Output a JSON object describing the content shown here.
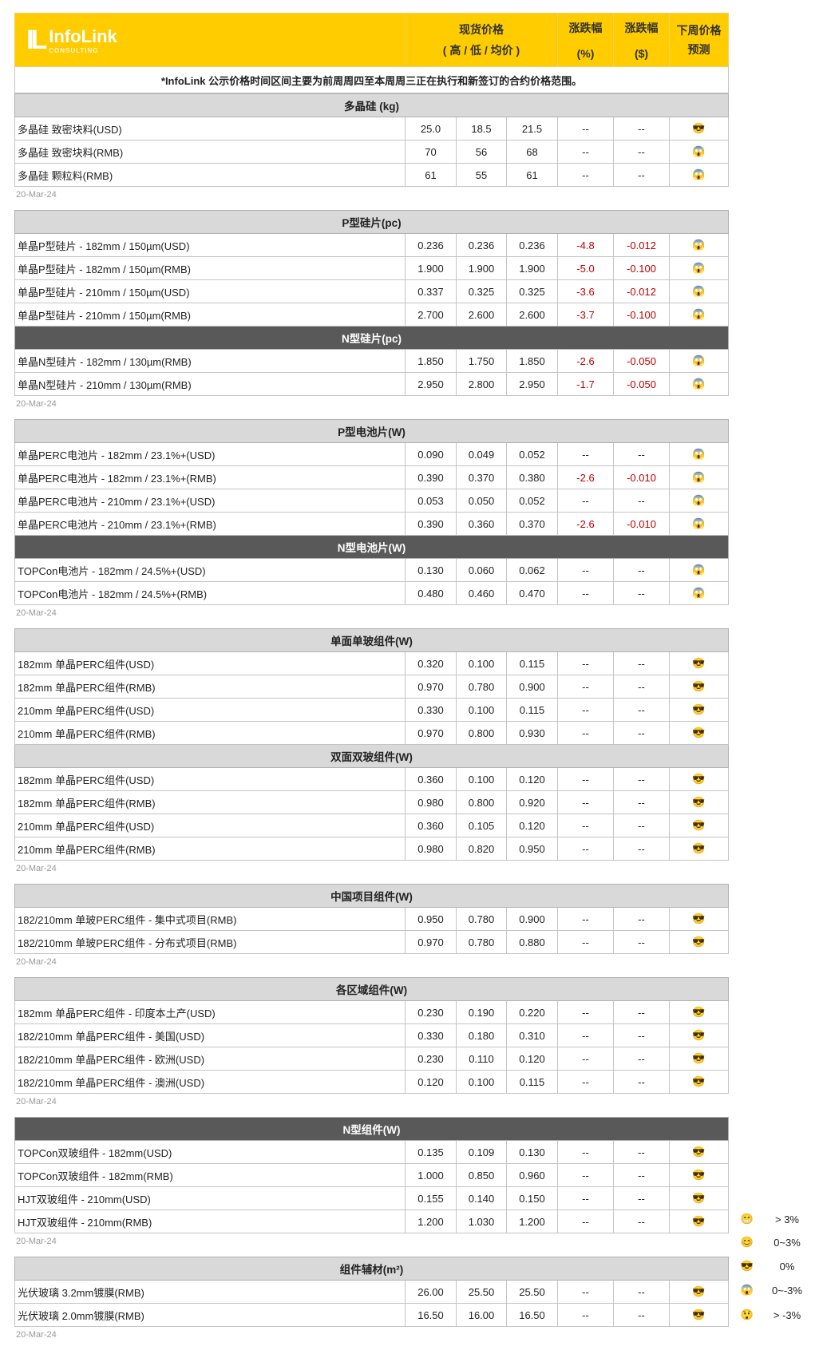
{
  "header": {
    "logo_name": "InfoLink",
    "logo_sub": "CONSULTING",
    "spot_price": "现货价格",
    "spot_price_sub": "( 高 / 低 / 均价 )",
    "change_pct": "涨跌幅",
    "change_pct_unit": "(%)",
    "change_usd": "涨跌幅",
    "change_usd_unit": "($)",
    "forecast": "下周价格",
    "forecast_sub": "预测"
  },
  "note": "*InfoLink 公示价格时间区间主要为前周周四至本周周三正在执行和新签订的合约价格范围。",
  "colors": {
    "header": "#ffcc00",
    "section_light": "#d9d9d9",
    "section_dark": "#595959",
    "negative": "#c00000"
  },
  "emoji_map": {
    "sunglasses-icon": "😎",
    "scream-icon": "😱",
    "grin-icon": "😁",
    "smile-icon": "😊",
    "astonished-icon": "😲"
  },
  "groups": [
    {
      "date": "20-Mar-24",
      "sections": [
        {
          "title": "多晶硅 (kg)",
          "dark": false,
          "rows": [
            {
              "name": "多晶硅 致密块料(USD)",
              "high": "25.0",
              "low": "18.5",
              "avg": "21.5",
              "pct": "--",
              "usd": "--",
              "forecast": "sunglasses-icon"
            },
            {
              "name": "多晶硅 致密块料(RMB)",
              "high": "70",
              "low": "56",
              "avg": "68",
              "pct": "--",
              "usd": "--",
              "forecast": "scream-icon"
            },
            {
              "name": "多晶硅 颗粒料(RMB)",
              "high": "61",
              "low": "55",
              "avg": "61",
              "pct": "--",
              "usd": "--",
              "forecast": "scream-icon"
            }
          ]
        }
      ]
    },
    {
      "date": "20-Mar-24",
      "sections": [
        {
          "title": "P型硅片(pc)",
          "dark": false,
          "rows": [
            {
              "name": "单晶P型硅片 - 182mm / 150µm(USD)",
              "high": "0.236",
              "low": "0.236",
              "avg": "0.236",
              "pct": "-4.8",
              "usd": "-0.012",
              "forecast": "scream-icon"
            },
            {
              "name": "单晶P型硅片 - 182mm / 150µm(RMB)",
              "high": "1.900",
              "low": "1.900",
              "avg": "1.900",
              "pct": "-5.0",
              "usd": "-0.100",
              "forecast": "scream-icon"
            },
            {
              "name": "单晶P型硅片 - 210mm / 150µm(USD)",
              "high": "0.337",
              "low": "0.325",
              "avg": "0.325",
              "pct": "-3.6",
              "usd": "-0.012",
              "forecast": "scream-icon"
            },
            {
              "name": "单晶P型硅片 - 210mm / 150µm(RMB)",
              "high": "2.700",
              "low": "2.600",
              "avg": "2.600",
              "pct": "-3.7",
              "usd": "-0.100",
              "forecast": "scream-icon"
            }
          ]
        },
        {
          "title": "N型硅片(pc)",
          "dark": true,
          "rows": [
            {
              "name": "单晶N型硅片 - 182mm / 130µm(RMB)",
              "high": "1.850",
              "low": "1.750",
              "avg": "1.850",
              "pct": "-2.6",
              "usd": "-0.050",
              "forecast": "scream-icon"
            },
            {
              "name": "单晶N型硅片 - 210mm / 130µm(RMB)",
              "high": "2.950",
              "low": "2.800",
              "avg": "2.950",
              "pct": "-1.7",
              "usd": "-0.050",
              "forecast": "scream-icon"
            }
          ]
        }
      ]
    },
    {
      "date": "20-Mar-24",
      "sections": [
        {
          "title": "P型电池片(W)",
          "dark": false,
          "rows": [
            {
              "name": "单晶PERC电池片 - 182mm / 23.1%+(USD)",
              "high": "0.090",
              "low": "0.049",
              "avg": "0.052",
              "pct": "--",
              "usd": "--",
              "forecast": "scream-icon"
            },
            {
              "name": "单晶PERC电池片 - 182mm / 23.1%+(RMB)",
              "high": "0.390",
              "low": "0.370",
              "avg": "0.380",
              "pct": "-2.6",
              "usd": "-0.010",
              "forecast": "scream-icon"
            },
            {
              "name": "单晶PERC电池片 - 210mm / 23.1%+(USD)",
              "high": "0.053",
              "low": "0.050",
              "avg": "0.052",
              "pct": "--",
              "usd": "--",
              "forecast": "scream-icon"
            },
            {
              "name": "单晶PERC电池片 - 210mm / 23.1%+(RMB)",
              "high": "0.390",
              "low": "0.360",
              "avg": "0.370",
              "pct": "-2.6",
              "usd": "-0.010",
              "forecast": "scream-icon"
            }
          ]
        },
        {
          "title": "N型电池片(W)",
          "dark": true,
          "rows": [
            {
              "name": "TOPCon电池片 - 182mm / 24.5%+(USD)",
              "high": "0.130",
              "low": "0.060",
              "avg": "0.062",
              "pct": "--",
              "usd": "--",
              "forecast": "scream-icon"
            },
            {
              "name": "TOPCon电池片 - 182mm / 24.5%+(RMB)",
              "high": "0.480",
              "low": "0.460",
              "avg": "0.470",
              "pct": "--",
              "usd": "--",
              "forecast": "scream-icon"
            }
          ]
        }
      ]
    },
    {
      "date": "20-Mar-24",
      "sections": [
        {
          "title": "单面单玻组件(W)",
          "dark": false,
          "rows": [
            {
              "name": "182mm 单晶PERC组件(USD)",
              "high": "0.320",
              "low": "0.100",
              "avg": "0.115",
              "pct": "--",
              "usd": "--",
              "forecast": "sunglasses-icon"
            },
            {
              "name": "182mm 单晶PERC组件(RMB)",
              "high": "0.970",
              "low": "0.780",
              "avg": "0.900",
              "pct": "--",
              "usd": "--",
              "forecast": "sunglasses-icon"
            },
            {
              "name": "210mm 单晶PERC组件(USD)",
              "high": "0.330",
              "low": "0.100",
              "avg": "0.115",
              "pct": "--",
              "usd": "--",
              "forecast": "sunglasses-icon"
            },
            {
              "name": "210mm 单晶PERC组件(RMB)",
              "high": "0.970",
              "low": "0.800",
              "avg": "0.930",
              "pct": "--",
              "usd": "--",
              "forecast": "sunglasses-icon"
            }
          ]
        },
        {
          "title": "双面双玻组件(W)",
          "dark": false,
          "rows": [
            {
              "name": "182mm 单晶PERC组件(USD)",
              "high": "0.360",
              "low": "0.100",
              "avg": "0.120",
              "pct": "--",
              "usd": "--",
              "forecast": "sunglasses-icon"
            },
            {
              "name": "182mm 单晶PERC组件(RMB)",
              "high": "0.980",
              "low": "0.800",
              "avg": "0.920",
              "pct": "--",
              "usd": "--",
              "forecast": "sunglasses-icon"
            },
            {
              "name": "210mm 单晶PERC组件(USD)",
              "high": "0.360",
              "low": "0.105",
              "avg": "0.120",
              "pct": "--",
              "usd": "--",
              "forecast": "sunglasses-icon"
            },
            {
              "name": "210mm 单晶PERC组件(RMB)",
              "high": "0.980",
              "low": "0.820",
              "avg": "0.950",
              "pct": "--",
              "usd": "--",
              "forecast": "sunglasses-icon"
            }
          ]
        }
      ]
    },
    {
      "date": "20-Mar-24",
      "sections": [
        {
          "title": "中国项目组件(W)",
          "dark": false,
          "rows": [
            {
              "name": "182/210mm 单玻PERC组件 - 集中式项目(RMB)",
              "high": "0.950",
              "low": "0.780",
              "avg": "0.900",
              "pct": "--",
              "usd": "--",
              "forecast": "sunglasses-icon"
            },
            {
              "name": "182/210mm 单玻PERC组件 - 分布式项目(RMB)",
              "high": "0.970",
              "low": "0.780",
              "avg": "0.880",
              "pct": "--",
              "usd": "--",
              "forecast": "sunglasses-icon"
            }
          ]
        }
      ]
    },
    {
      "date": "20-Mar-24",
      "sections": [
        {
          "title": "各区域组件(W)",
          "dark": false,
          "rows": [
            {
              "name": "182mm 单晶PERC组件 - 印度本土产(USD)",
              "high": "0.230",
              "low": "0.190",
              "avg": "0.220",
              "pct": "--",
              "usd": "--",
              "forecast": "sunglasses-icon"
            },
            {
              "name": "182/210mm 单晶PERC组件 - 美国(USD)",
              "high": "0.330",
              "low": "0.180",
              "avg": "0.310",
              "pct": "--",
              "usd": "--",
              "forecast": "sunglasses-icon"
            },
            {
              "name": "182/210mm 单晶PERC组件 - 欧洲(USD)",
              "high": "0.230",
              "low": "0.110",
              "avg": "0.120",
              "pct": "--",
              "usd": "--",
              "forecast": "sunglasses-icon"
            },
            {
              "name": "182/210mm 单晶PERC组件 - 澳洲(USD)",
              "high": "0.120",
              "low": "0.100",
              "avg": "0.115",
              "pct": "--",
              "usd": "--",
              "forecast": "sunglasses-icon"
            }
          ]
        }
      ]
    },
    {
      "date": "20-Mar-24",
      "sections": [
        {
          "title": "N型组件(W)",
          "dark": true,
          "rows": [
            {
              "name": "TOPCon双玻组件 - 182mm(USD)",
              "high": "0.135",
              "low": "0.109",
              "avg": "0.130",
              "pct": "--",
              "usd": "--",
              "forecast": "sunglasses-icon"
            },
            {
              "name": "TOPCon双玻组件 - 182mm(RMB)",
              "high": "1.000",
              "low": "0.850",
              "avg": "0.960",
              "pct": "--",
              "usd": "--",
              "forecast": "sunglasses-icon"
            },
            {
              "name": "HJT双玻组件 - 210mm(USD)",
              "high": "0.155",
              "low": "0.140",
              "avg": "0.150",
              "pct": "--",
              "usd": "--",
              "forecast": "sunglasses-icon"
            },
            {
              "name": "HJT双玻组件 - 210mm(RMB)",
              "high": "1.200",
              "low": "1.030",
              "avg": "1.200",
              "pct": "--",
              "usd": "--",
              "forecast": "sunglasses-icon"
            }
          ]
        }
      ]
    },
    {
      "date": "20-Mar-24",
      "sections": [
        {
          "title": "组件辅材(m²)",
          "dark": false,
          "rows": [
            {
              "name": "光伏玻璃 3.2mm镀膜(RMB)",
              "high": "26.00",
              "low": "25.50",
              "avg": "25.50",
              "pct": "--",
              "usd": "--",
              "forecast": "sunglasses-icon"
            },
            {
              "name": "光伏玻璃 2.0mm镀膜(RMB)",
              "high": "16.50",
              "low": "16.00",
              "avg": "16.50",
              "pct": "--",
              "usd": "--",
              "forecast": "sunglasses-icon"
            }
          ]
        }
      ]
    }
  ],
  "legend": [
    {
      "icon": "grin-icon",
      "label": "> 3%"
    },
    {
      "icon": "smile-icon",
      "label": "0~3%"
    },
    {
      "icon": "sunglasses-icon",
      "label": "0%"
    },
    {
      "icon": "scream-icon",
      "label": "0~-3%"
    },
    {
      "icon": "astonished-icon",
      "label": "> -3%"
    }
  ]
}
